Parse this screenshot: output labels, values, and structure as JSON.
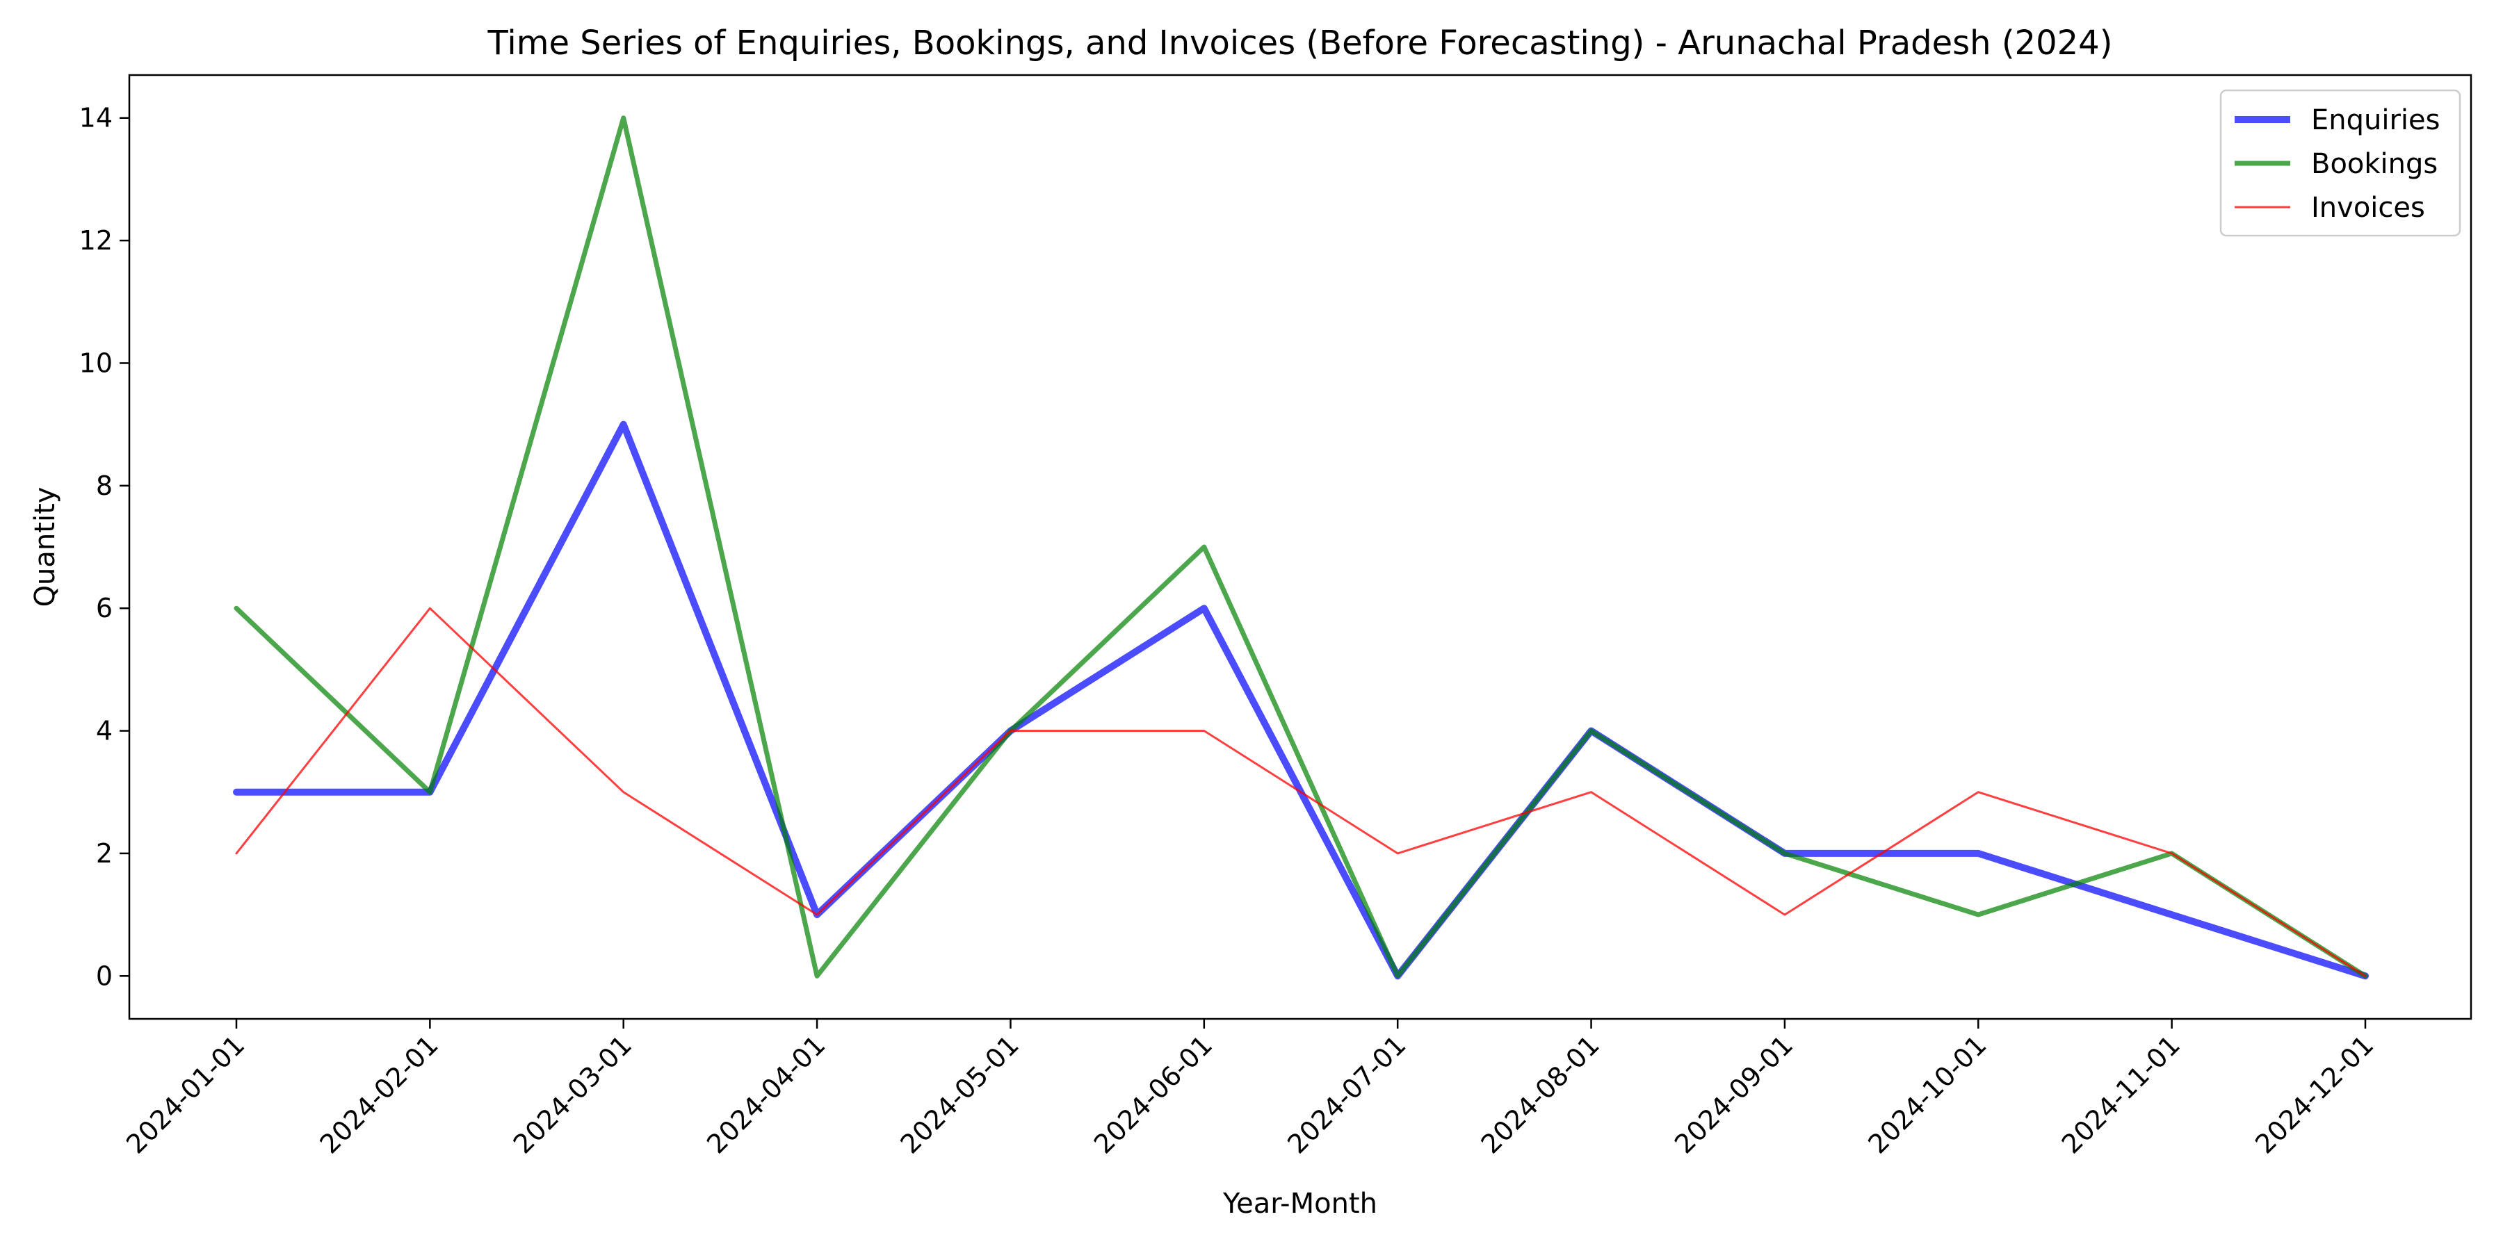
{
  "chart_data": {
    "type": "line",
    "title": "Time Series of Enquiries, Bookings, and Invoices (Before Forecasting) - Arunachal Pradesh (2024)",
    "xlabel": "Year-Month",
    "ylabel": "Quantity",
    "categories": [
      "2024-01-01",
      "2024-02-01",
      "2024-03-01",
      "2024-04-01",
      "2024-05-01",
      "2024-06-01",
      "2024-07-01",
      "2024-08-01",
      "2024-09-01",
      "2024-10-01",
      "2024-11-01",
      "2024-12-01"
    ],
    "ylim": [
      -0.7,
      14.7
    ],
    "yticks": [
      0,
      2,
      4,
      6,
      8,
      10,
      12,
      14
    ],
    "grid": false,
    "legend_position": "top-right",
    "series": [
      {
        "name": "Enquiries",
        "color": "#0000ff",
        "opacity": 0.7,
        "width": "thick",
        "values": [
          3,
          3,
          9,
          1,
          4,
          6,
          0,
          4,
          2,
          2,
          1,
          0
        ]
      },
      {
        "name": "Bookings",
        "color": "#008000",
        "opacity": 0.7,
        "width": "medium",
        "values": [
          6,
          3,
          14,
          0,
          4,
          7,
          0,
          4,
          2,
          1,
          2,
          0
        ]
      },
      {
        "name": "Invoices",
        "color": "#ff0000",
        "opacity": 0.75,
        "width": "thin",
        "values": [
          2,
          6,
          3,
          1,
          4,
          4,
          2,
          3,
          1,
          3,
          2,
          0
        ]
      }
    ]
  }
}
